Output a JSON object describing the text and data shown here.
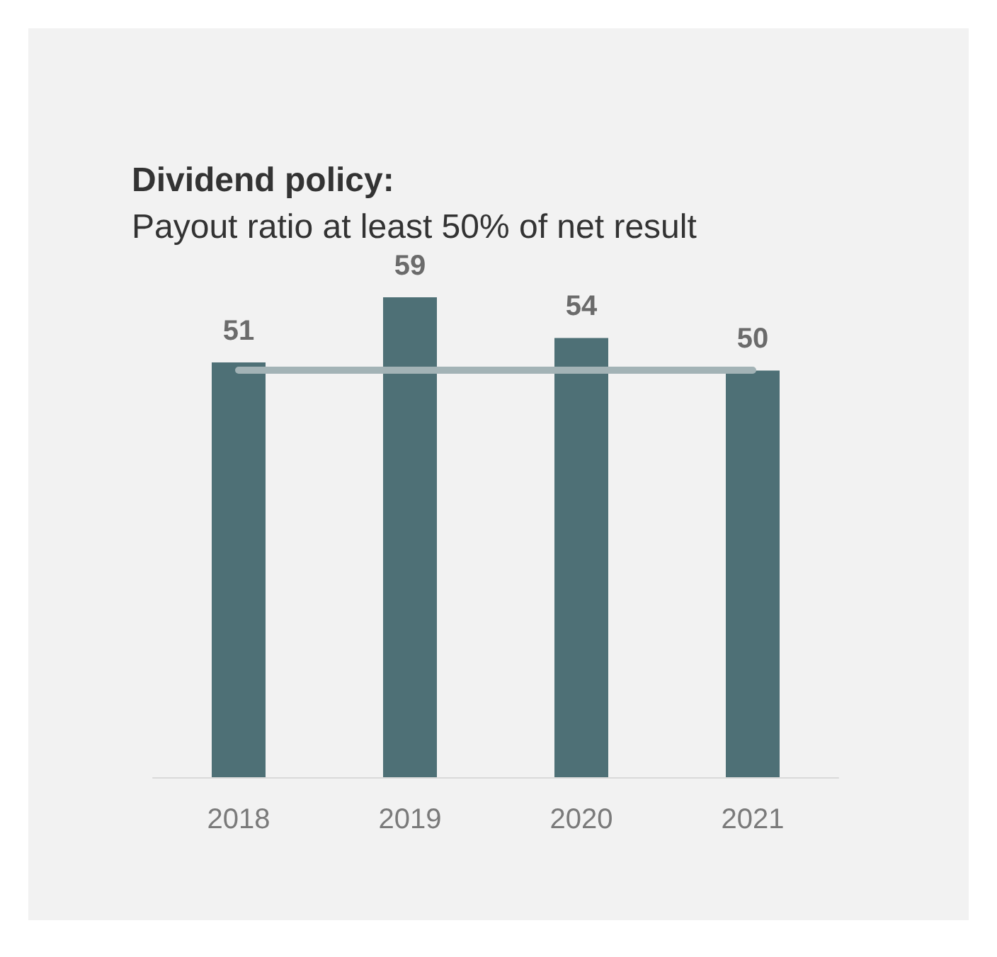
{
  "chart_data": {
    "type": "bar",
    "title": "Dividend policy:",
    "subtitle": "Payout ratio at least 50% of net result",
    "categories": [
      "2018",
      "2019",
      "2020",
      "2021"
    ],
    "values": [
      51,
      59,
      54,
      50
    ],
    "color": "#4e7076",
    "tick_labels": "x",
    "data_labels": true,
    "grid": false,
    "ref_lines": [
      {
        "axis": "y",
        "value": 50,
        "color": "#a3b3b6"
      }
    ]
  }
}
